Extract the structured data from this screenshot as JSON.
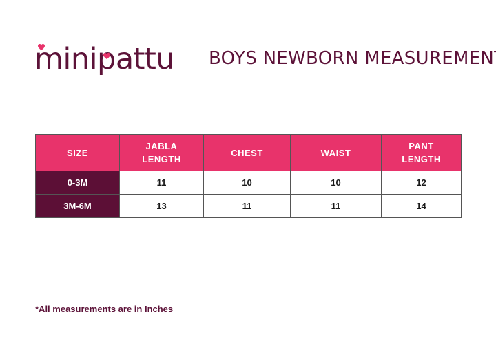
{
  "brand": {
    "name": "minipattu"
  },
  "page": {
    "title": "BOYS NEWBORN MEASUREMENT"
  },
  "table": {
    "headers": [
      "SIZE",
      "JABLA LENGTH",
      "CHEST",
      "WAIST",
      "PANT LENGTH"
    ],
    "rows": [
      [
        "0-3M",
        "11",
        "10",
        "10",
        "12"
      ],
      [
        "3M-6M",
        "13",
        "11",
        "11",
        "14"
      ]
    ]
  },
  "footnote": "*All measurements are in Inches",
  "colors": {
    "brand": "#5c1238",
    "accent": "#e8336b",
    "size_column": "#5c0f36"
  }
}
